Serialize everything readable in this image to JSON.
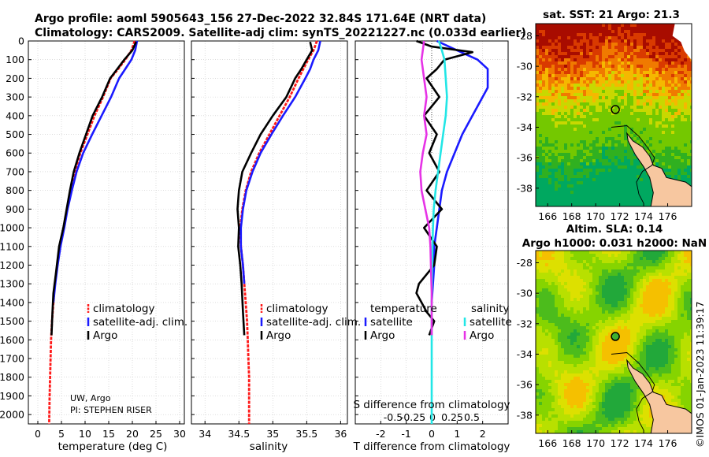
{
  "figure": {
    "title_line1": "Argo profile: aoml 5905643_156 27-Dec-2022 32.84S 171.64E (NRT data)",
    "title_line2": "Climatology: CARS2009. Satellite-adj clim: synTS_20221227.nc (0.033d earlier)",
    "credit": "UW, Argo",
    "pi": "PI: STEPHEN RISER",
    "timestamp": "©IMOS 01-Jan-2023 11:39:17",
    "colors": {
      "climatology": "#ff1a1a",
      "satellite": "#1a1aff",
      "argo": "#000000",
      "sat_salinity": "#22e6e6",
      "argo_salinity": "#e633e6"
    }
  },
  "chart_data": [
    {
      "type": "line",
      "xlabel": "temperature (deg C)",
      "ylabel": "",
      "xlim": [
        -2,
        31
      ],
      "ylim": [
        2050,
        0
      ],
      "xticks": [
        "0",
        "5",
        "10",
        "15",
        "20",
        "25",
        "30"
      ],
      "xtick_values": [
        0,
        5,
        10,
        15,
        20,
        25,
        30
      ],
      "yticks": [
        "0",
        "100",
        "200",
        "300",
        "400",
        "500",
        "600",
        "700",
        "800",
        "900",
        "1000",
        "1100",
        "1200",
        "1300",
        "1400",
        "1500",
        "1600",
        "1700",
        "1800",
        "1900",
        "2000"
      ],
      "ytick_values": [
        0,
        100,
        200,
        300,
        400,
        500,
        600,
        700,
        800,
        900,
        1000,
        1100,
        1200,
        1300,
        1400,
        1500,
        1600,
        1700,
        1800,
        1900,
        2000
      ],
      "legend": [
        "climatology",
        "satellite-adj. clim.",
        "Argo"
      ],
      "series": [
        {
          "name": "climatology",
          "color": "#ff1a1a",
          "x": [
            20.5,
            19.8,
            18.5,
            17.0,
            15.4,
            13.8,
            12.0,
            10.5,
            9.0,
            7.8,
            7.0,
            6.2,
            5.5,
            4.7,
            4.1,
            3.6,
            3.3,
            3.0,
            2.8,
            2.7,
            2.6,
            2.5,
            2.4
          ],
          "y": [
            0,
            50,
            100,
            150,
            200,
            300,
            400,
            500,
            600,
            700,
            800,
            900,
            1000,
            1100,
            1200,
            1300,
            1400,
            1500,
            1600,
            1700,
            1800,
            1900,
            2050
          ]
        },
        {
          "name": "satellite-adj. clim.",
          "color": "#1a1aff",
          "x": [
            21.0,
            20.6,
            19.8,
            18.5,
            17.2,
            15.5,
            13.5,
            11.5,
            9.6,
            8.2,
            7.2,
            6.3,
            5.6,
            4.8,
            4.2,
            3.7,
            3.3
          ],
          "y": [
            0,
            50,
            100,
            150,
            200,
            300,
            400,
            500,
            600,
            700,
            800,
            900,
            1000,
            1100,
            1200,
            1300,
            1400
          ]
        },
        {
          "name": "Argo",
          "color": "#000000",
          "x": [
            20.8,
            20.0,
            18.3,
            16.8,
            15.3,
            13.6,
            11.6,
            10.2,
            8.8,
            7.6,
            6.8,
            6.1,
            5.4,
            4.5,
            3.8,
            3.3,
            3.1,
            2.9
          ],
          "y": [
            5,
            50,
            100,
            150,
            200,
            300,
            400,
            500,
            600,
            700,
            800,
            900,
            1000,
            1100,
            1250,
            1350,
            1450,
            1575
          ]
        }
      ]
    },
    {
      "type": "line",
      "xlabel": "salinity",
      "xlim": [
        33.8,
        36.1
      ],
      "ylim": [
        2050,
        0
      ],
      "xticks": [
        "34",
        "34.5",
        "35",
        "35.5",
        "36"
      ],
      "xtick_values": [
        34,
        34.5,
        35,
        35.5,
        36
      ],
      "legend": [
        "climatology",
        "satellite-adj. clim.",
        "Argo"
      ],
      "series": [
        {
          "name": "climatology",
          "color": "#ff1a1a",
          "x": [
            35.65,
            35.6,
            35.52,
            35.45,
            35.38,
            35.25,
            35.1,
            34.95,
            34.8,
            34.68,
            34.6,
            34.55,
            34.52,
            34.53,
            34.56,
            34.58,
            34.6,
            34.62,
            34.63,
            34.64,
            34.65,
            34.65
          ],
          "y": [
            0,
            50,
            100,
            150,
            200,
            300,
            400,
            500,
            600,
            700,
            800,
            900,
            1000,
            1100,
            1200,
            1300,
            1400,
            1500,
            1600,
            1700,
            1800,
            2050
          ]
        },
        {
          "name": "satellite-adj. clim.",
          "color": "#1a1aff",
          "x": [
            35.7,
            35.67,
            35.6,
            35.55,
            35.48,
            35.33,
            35.15,
            34.98,
            34.82,
            34.7,
            34.61,
            34.56,
            34.53,
            34.53,
            34.56,
            34.58
          ],
          "y": [
            0,
            50,
            100,
            150,
            200,
            300,
            400,
            500,
            600,
            700,
            800,
            900,
            1000,
            1100,
            1200,
            1300
          ]
        },
        {
          "name": "Argo",
          "color": "#000000",
          "x": [
            35.55,
            35.58,
            35.5,
            35.42,
            35.33,
            35.2,
            35.0,
            34.82,
            34.68,
            34.55,
            34.5,
            34.48,
            34.5,
            34.49,
            34.52,
            34.54,
            34.56,
            34.58
          ],
          "y": [
            5,
            50,
            100,
            150,
            200,
            300,
            400,
            500,
            600,
            700,
            800,
            900,
            1000,
            1100,
            1200,
            1300,
            1450,
            1575
          ]
        }
      ]
    },
    {
      "type": "line",
      "xlabel": "T difference from climatology",
      "top_xlabel": "S difference from climatology",
      "xlim": [
        -3,
        3
      ],
      "ylim": [
        2050,
        0
      ],
      "xticks": [
        "-2",
        "-1",
        "0",
        "1",
        "2"
      ],
      "xtick_values": [
        -2,
        -1,
        0,
        1,
        2
      ],
      "top_xticks": [
        "-0.5",
        "-0.25",
        "0",
        "0.25",
        "0.5"
      ],
      "legend_temperature_title": "temperature",
      "legend_salinity_title": "salinity",
      "legend_temperature": [
        "satellite",
        "Argo"
      ],
      "legend_salinity": [
        "satellite",
        "Argo"
      ],
      "series": [
        {
          "name": "T satellite",
          "color": "#1a1aff",
          "x": [
            0.2,
            1.0,
            1.8,
            2.2,
            2.2,
            1.6,
            1.2,
            0.9,
            0.6,
            0.4,
            0.3,
            0.2,
            0.1,
            0.1,
            0.05,
            0.0
          ],
          "y": [
            0,
            50,
            100,
            150,
            250,
            400,
            500,
            600,
            700,
            800,
            900,
            1000,
            1100,
            1200,
            1300,
            1400
          ]
        },
        {
          "name": "T Argo",
          "color": "#000000",
          "x": [
            -0.6,
            0.0,
            1.6,
            0.5,
            0.2,
            -0.2,
            0.3,
            -0.3,
            0.2,
            -0.1,
            0.3,
            -0.2,
            0.4,
            -0.3,
            0.2,
            0.1,
            -0.2,
            -0.5,
            -0.6,
            -0.4,
            -0.2,
            0.1,
            -0.1
          ],
          "y": [
            0,
            30,
            60,
            100,
            150,
            200,
            300,
            400,
            500,
            600,
            700,
            800,
            900,
            1000,
            1100,
            1200,
            1250,
            1300,
            1350,
            1400,
            1450,
            1500,
            1575
          ]
        },
        {
          "name": "S satellite",
          "color": "#22e6e6",
          "x": [
            0.28,
            0.4,
            0.5,
            0.55,
            0.6,
            0.55,
            0.45,
            0.35,
            0.25,
            0.15,
            0.08,
            0.05,
            0.03,
            0.02,
            0.0,
            0.0,
            0.0
          ],
          "y": [
            0,
            50,
            100,
            200,
            300,
            400,
            500,
            600,
            700,
            800,
            900,
            1000,
            1100,
            1200,
            1400,
            1700,
            2050
          ]
        },
        {
          "name": "S Argo",
          "color": "#e633e6",
          "x": [
            -0.3,
            -0.4,
            -0.3,
            -0.2,
            -0.3,
            -0.2,
            -0.35,
            -0.45,
            -0.4,
            -0.25,
            -0.1,
            -0.05,
            -0.03,
            0.0,
            0.0
          ],
          "y": [
            0,
            100,
            200,
            300,
            400,
            500,
            600,
            700,
            800,
            900,
            1000,
            1100,
            1200,
            1350,
            1575
          ]
        }
      ]
    }
  ],
  "maps": [
    {
      "name": "sst",
      "title": "sat. SST: 21 Argo: 21.3",
      "lon_ticks": [
        "166",
        "168",
        "170",
        "172",
        "174",
        "176"
      ],
      "lat_ticks": [
        "-28",
        "-30",
        "-32",
        "-34",
        "-36",
        "-38"
      ],
      "lon_range": [
        165,
        178
      ],
      "lat_range": [
        -39.2,
        -27.2
      ],
      "float_position": {
        "lon": 171.64,
        "lat": -32.84
      }
    },
    {
      "name": "sla",
      "title_line1": "Altim. SLA: 0.14",
      "title_line2": "Argo h1000: 0.031 h2000: NaN",
      "lon_ticks": [
        "166",
        "168",
        "170",
        "172",
        "174",
        "176"
      ],
      "lat_ticks": [
        "-28",
        "-30",
        "-32",
        "-34",
        "-36",
        "-38"
      ],
      "lon_range": [
        165,
        178
      ],
      "lat_range": [
        -39.2,
        -27.2
      ],
      "float_position": {
        "lon": 171.64,
        "lat": -32.84
      }
    }
  ]
}
